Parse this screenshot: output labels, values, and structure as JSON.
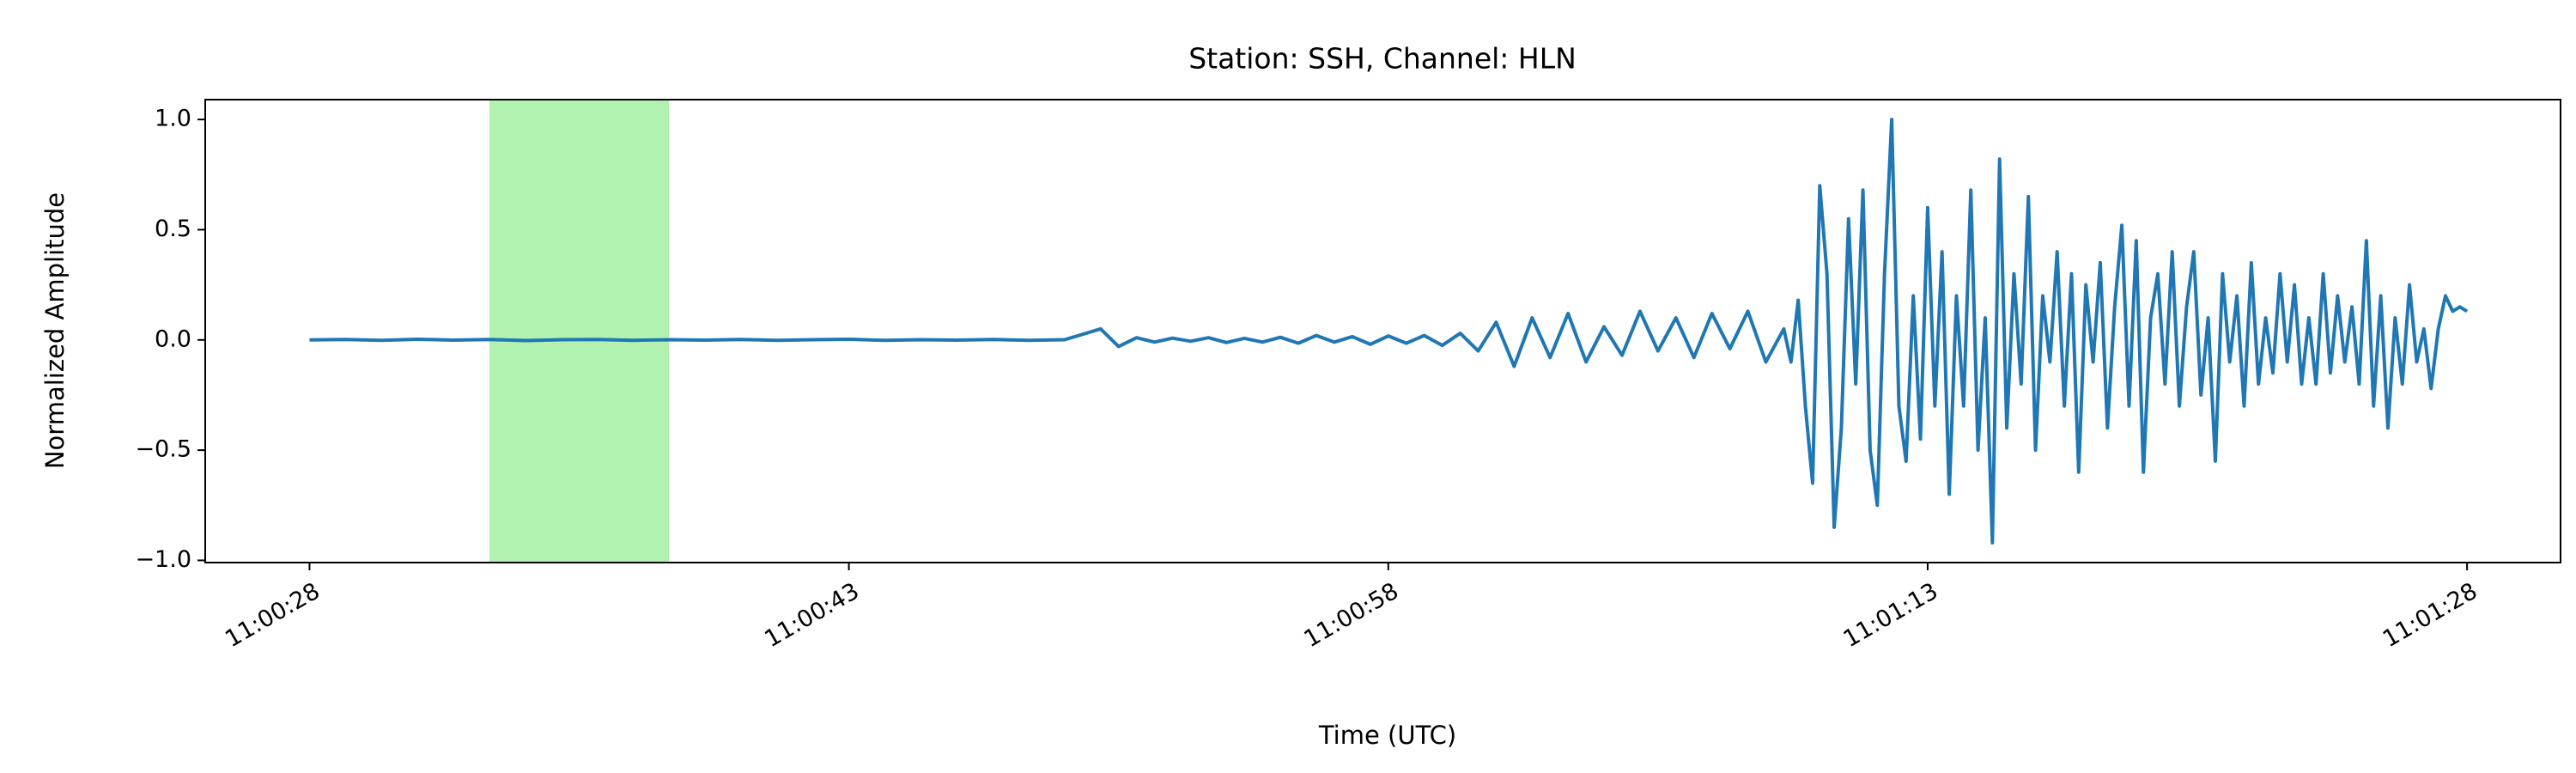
{
  "chart_data": {
    "type": "line",
    "title": "Station: SSH, Channel: HLN",
    "xlabel": "Time (UTC)",
    "ylabel": "Normalized Amplitude",
    "xlim": [
      "11:00:25.1",
      "11:01:30.6"
    ],
    "xticks": [
      "11:00:28",
      "11:00:43",
      "11:00:58",
      "11:01:13",
      "11:01:28"
    ],
    "ylim": [
      -1.01,
      1.09
    ],
    "yticks": [
      {
        "value": 1.0,
        "label": "1.0"
      },
      {
        "value": 0.5,
        "label": "0.5"
      },
      {
        "value": 0.0,
        "label": "0.0"
      },
      {
        "value": -0.5,
        "label": "−0.5"
      },
      {
        "value": -1.0,
        "label": "−1.0"
      }
    ],
    "shade": {
      "start": "11:00:33",
      "end": "11:00:38",
      "color": "#b2f2b0"
    },
    "series": [
      {
        "color": "#1f77b4",
        "x": [
          "11:00:28",
          "11:00:29",
          "11:00:30",
          "11:00:31",
          "11:00:32",
          "11:00:33",
          "11:00:34",
          "11:00:35",
          "11:00:36",
          "11:00:37",
          "11:00:38",
          "11:00:39",
          "11:00:40",
          "11:00:41",
          "11:00:42",
          "11:00:43",
          "11:00:44",
          "11:00:45",
          "11:00:46",
          "11:00:47",
          "11:00:48",
          "11:00:49",
          "11:00:50",
          "11:00:50.5",
          "11:00:51",
          "11:00:51.5",
          "11:00:52",
          "11:00:52.5",
          "11:00:53",
          "11:00:53.5",
          "11:00:54",
          "11:00:54.5",
          "11:00:55",
          "11:00:55.5",
          "11:00:56",
          "11:00:56.5",
          "11:00:57",
          "11:00:57.5",
          "11:00:58",
          "11:00:58.5",
          "11:00:59",
          "11:00:59.5",
          "11:01:00",
          "11:01:00.5",
          "11:01:01",
          "11:01:01.5",
          "11:01:02",
          "11:01:02.5",
          "11:01:03",
          "11:01:03.5",
          "11:01:04",
          "11:01:04.5",
          "11:01:05",
          "11:01:05.5",
          "11:01:06",
          "11:01:06.5",
          "11:01:07",
          "11:01:07.5",
          "11:01:08",
          "11:01:08.5",
          "11:01:09",
          "11:01:09.2",
          "11:01:09.4",
          "11:01:09.6",
          "11:01:09.8",
          "11:01:10",
          "11:01:10.2",
          "11:01:10.4",
          "11:01:10.6",
          "11:01:10.8",
          "11:01:11",
          "11:01:11.2",
          "11:01:11.4",
          "11:01:11.6",
          "11:01:11.8",
          "11:01:12",
          "11:01:12.2",
          "11:01:12.4",
          "11:01:12.6",
          "11:01:12.8",
          "11:01:13",
          "11:01:13.2",
          "11:01:13.4",
          "11:01:13.6",
          "11:01:13.8",
          "11:01:14",
          "11:01:14.2",
          "11:01:14.4",
          "11:01:14.6",
          "11:01:14.8",
          "11:01:15",
          "11:01:15.2",
          "11:01:15.4",
          "11:01:15.6",
          "11:01:15.8",
          "11:01:16",
          "11:01:16.2",
          "11:01:16.4",
          "11:01:16.6",
          "11:01:16.8",
          "11:01:17",
          "11:01:17.2",
          "11:01:17.4",
          "11:01:17.6",
          "11:01:17.8",
          "11:01:18",
          "11:01:18.2",
          "11:01:18.4",
          "11:01:18.6",
          "11:01:18.8",
          "11:01:19",
          "11:01:19.2",
          "11:01:19.4",
          "11:01:19.6",
          "11:01:19.8",
          "11:01:20",
          "11:01:20.2",
          "11:01:20.4",
          "11:01:20.6",
          "11:01:20.8",
          "11:01:21",
          "11:01:21.2",
          "11:01:21.4",
          "11:01:21.6",
          "11:01:21.8",
          "11:01:22",
          "11:01:22.2",
          "11:01:22.4",
          "11:01:22.6",
          "11:01:22.8",
          "11:01:23",
          "11:01:23.2",
          "11:01:23.4",
          "11:01:23.6",
          "11:01:23.8",
          "11:01:24",
          "11:01:24.2",
          "11:01:24.4",
          "11:01:24.6",
          "11:01:24.8",
          "11:01:25",
          "11:01:25.2",
          "11:01:25.4",
          "11:01:25.6",
          "11:01:25.8",
          "11:01:26",
          "11:01:26.2",
          "11:01:26.4",
          "11:01:26.6",
          "11:01:26.8",
          "11:01:27",
          "11:01:27.2",
          "11:01:27.4",
          "11:01:27.6",
          "11:01:27.8",
          "11:01:28"
        ],
        "values": [
          0,
          0.002,
          -0.002,
          0.003,
          -0.001,
          0.002,
          -0.003,
          0.001,
          0.002,
          -0.002,
          0.001,
          -0.001,
          0.002,
          -0.002,
          0.001,
          0.003,
          -0.002,
          0.001,
          -0.001,
          0.002,
          -0.002,
          0.001,
          0.05,
          -0.03,
          0.01,
          -0.01,
          0.008,
          -0.006,
          0.01,
          -0.012,
          0.007,
          -0.01,
          0.012,
          -0.015,
          0.02,
          -0.01,
          0.015,
          -0.02,
          0.018,
          -0.015,
          0.02,
          -0.025,
          0.03,
          -0.05,
          0.08,
          -0.12,
          0.1,
          -0.08,
          0.12,
          -0.1,
          0.06,
          -0.07,
          0.13,
          -0.05,
          0.1,
          -0.08,
          0.12,
          -0.04,
          0.13,
          -0.1,
          0.05,
          -0.1,
          0.18,
          -0.3,
          -0.65,
          0.7,
          0.3,
          -0.85,
          -0.4,
          0.55,
          -0.2,
          0.68,
          -0.5,
          -0.75,
          0.3,
          1.0,
          -0.3,
          -0.55,
          0.2,
          -0.45,
          0.6,
          -0.3,
          0.4,
          -0.7,
          0.2,
          -0.3,
          0.68,
          -0.5,
          0.1,
          -0.92,
          0.82,
          -0.4,
          0.3,
          -0.2,
          0.65,
          -0.5,
          0.2,
          -0.1,
          0.4,
          -0.3,
          0.3,
          -0.6,
          0.25,
          -0.1,
          0.35,
          -0.4,
          0.15,
          0.52,
          -0.3,
          0.45,
          -0.6,
          0.1,
          0.3,
          -0.2,
          0.4,
          -0.3,
          0.15,
          0.4,
          -0.25,
          0.1,
          -0.55,
          0.3,
          -0.1,
          0.2,
          -0.3,
          0.35,
          -0.2,
          0.1,
          -0.15,
          0.3,
          -0.1,
          0.25,
          -0.2,
          0.1,
          -0.2,
          0.3,
          -0.15,
          0.2,
          -0.1,
          0.15,
          -0.2,
          0.45,
          -0.3,
          0.2,
          -0.4,
          0.1,
          -0.2,
          0.25,
          -0.1,
          0.05,
          -0.22,
          0.05,
          0.2,
          0.13,
          0.15,
          0.13
        ]
      }
    ]
  }
}
